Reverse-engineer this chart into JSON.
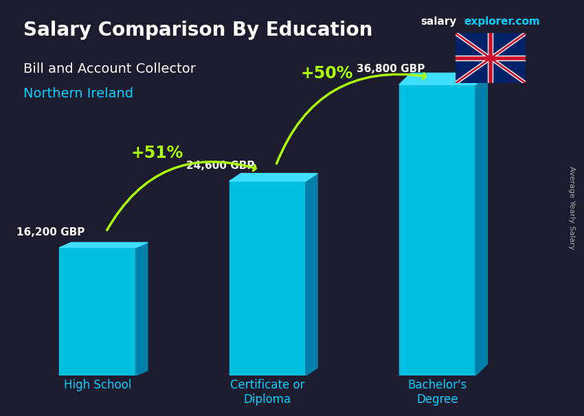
{
  "title_main": "Salary Comparison By Education",
  "title_sub": "Bill and Account Collector",
  "title_location": "Northern Ireland",
  "categories": [
    "High School",
    "Certificate or\nDiploma",
    "Bachelor's\nDegree"
  ],
  "values": [
    16200,
    24600,
    36800
  ],
  "value_labels": [
    "16,200 GBP",
    "24,600 GBP",
    "36,800 GBP"
  ],
  "pct_labels": [
    "+51%",
    "+50%"
  ],
  "bar_color_top": "#00cfff",
  "bar_color_mid": "#00aadd",
  "bar_color_bot": "#0088bb",
  "bar_shadow_color": "#006699",
  "background_color": "#1a1a2e",
  "title_color": "#ffffff",
  "subtitle_color": "#ffffff",
  "location_color": "#00cfff",
  "value_label_color": "#ffffff",
  "pct_color": "#aaff00",
  "arrow_color": "#aaff00",
  "axis_label_color": "#00cfff",
  "ylabel_text": "Average Yearly Salary",
  "website_text": "salaryexplorer.com",
  "website_salary_color": "#ffffff",
  "website_explorer_color": "#00cfff",
  "ylim": [
    0,
    42000
  ],
  "bar_width": 0.45
}
